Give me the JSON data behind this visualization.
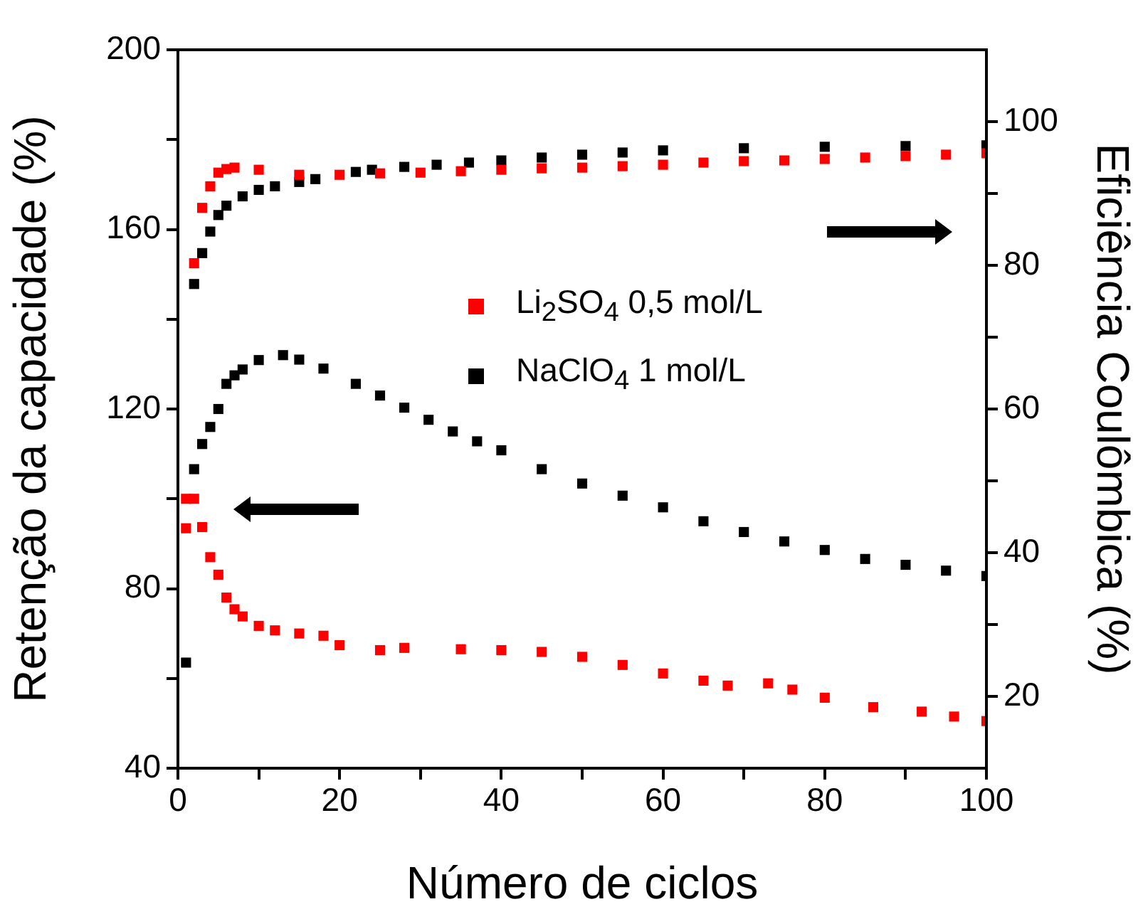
{
  "chart_data": {
    "type": "scatter",
    "xlabel": "Número de ciclos",
    "ylabel": "Retenção da capacidade (%)",
    "y2label": "Eficiência Coulômbica (%)",
    "xlim": [
      0,
      100
    ],
    "xticks": [
      0,
      {
        "value": 10,
        "label": null
      },
      20,
      {
        "value": 30,
        "label": null
      },
      40,
      {
        "value": 50,
        "label": null
      },
      60,
      {
        "value": 70,
        "label": null
      },
      80,
      {
        "value": 90,
        "label": null
      },
      100
    ],
    "ylim": [
      40,
      200
    ],
    "yticks": [
      40,
      {
        "value": 60,
        "label": null
      },
      80,
      {
        "value": 100,
        "label": null
      },
      120,
      {
        "value": 140,
        "label": null
      },
      160,
      {
        "value": 180,
        "label": null
      },
      200
    ],
    "y2lim": [
      10,
      110
    ],
    "y2ticks": [
      20,
      {
        "value": 30,
        "label": null
      },
      40,
      {
        "value": 50,
        "label": null
      },
      60,
      {
        "value": 70,
        "label": null
      },
      80,
      {
        "value": 90,
        "label": null
      },
      100
    ],
    "marker": "square",
    "legend": "center right",
    "grid": false,
    "series": [
      {
        "name": "Li$_{2}$SO$_{4}$ 0,5 mol/L",
        "color": "#ff0000",
        "x": [
          1,
          2,
          3,
          4,
          5,
          6,
          7,
          8,
          10,
          12,
          15,
          18,
          20,
          25,
          28,
          35,
          40,
          45,
          50,
          55,
          60,
          65,
          68,
          73,
          76,
          80,
          86,
          92,
          96,
          100
        ],
        "values": [
          100,
          100,
          93.7,
          87,
          83.1,
          78,
          75.4,
          73.8,
          71.7,
          70.7,
          70,
          69.5,
          67.4,
          66.3,
          66.8,
          66.5,
          66.3,
          65.9,
          64.8,
          63,
          61.1,
          59.5,
          58.4,
          58.9,
          57.5,
          55.7,
          53.6,
          52.6,
          51.5,
          50.5
        ]
      },
      {
        "name": "NaClO$_{4}$ 1 mol/L",
        "color": "#000000",
        "x": [
          2,
          3,
          4,
          5,
          6,
          7,
          8,
          10,
          13,
          15,
          18,
          22,
          25,
          28,
          31,
          34,
          37,
          40,
          45,
          50,
          55,
          60,
          65,
          70,
          75,
          80,
          85,
          90,
          95,
          100
        ],
        "values": [
          106.6,
          112.2,
          116,
          120,
          125.6,
          127.5,
          128.8,
          130.9,
          132,
          131,
          129,
          125.6,
          123,
          120.3,
          117.6,
          115,
          112.8,
          110.8,
          106.6,
          103.4,
          100.7,
          98.1,
          95,
          92.6,
          90.5,
          88.6,
          86.6,
          85.3,
          84,
          82.8
        ]
      },
      {
        "color": "#ff0000",
        "axis": "y2",
        "x": [
          1,
          2,
          3,
          4,
          5,
          6,
          7,
          10,
          15,
          20,
          25,
          30,
          35,
          40,
          45,
          50,
          55,
          60,
          65,
          70,
          75,
          80,
          85,
          90,
          95,
          100
        ],
        "values": [
          43.4,
          80.3,
          88,
          91,
          92.9,
          93.4,
          93.6,
          93.3,
          92.6,
          92.6,
          92.8,
          92.9,
          93.1,
          93.3,
          93.5,
          93.6,
          93.8,
          94,
          94.3,
          94.5,
          94.6,
          94.8,
          95,
          95.2,
          95.4,
          95.6
        ]
      },
      {
        "color": "#000000",
        "axis": "y2",
        "x": [
          1,
          2,
          3,
          4,
          5,
          6,
          8,
          10,
          12,
          15,
          17,
          22,
          24,
          28,
          32,
          36,
          40,
          45,
          50,
          55,
          60,
          70,
          80,
          90,
          100
        ],
        "values": [
          24.7,
          77.4,
          81.7,
          84.7,
          87,
          88.3,
          89.6,
          90.5,
          91,
          91.6,
          92,
          93,
          93.3,
          93.7,
          94,
          94.3,
          94.6,
          95,
          95.4,
          95.7,
          96,
          96.3,
          96.5,
          96.6,
          96.7
        ]
      }
    ]
  }
}
